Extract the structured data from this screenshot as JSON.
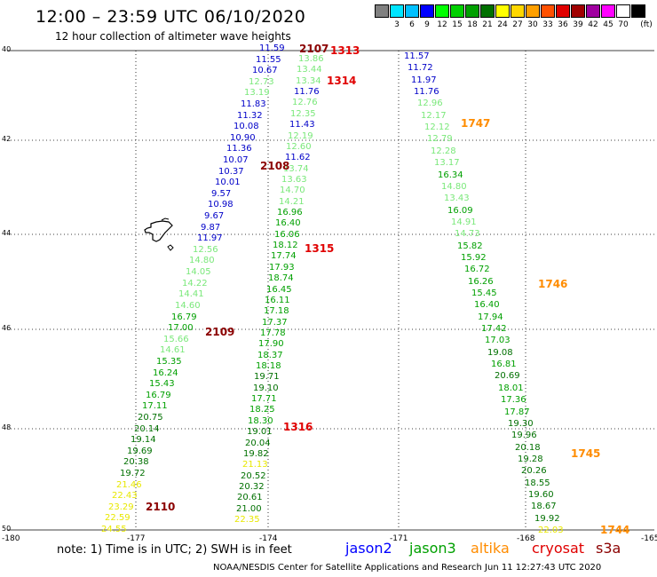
{
  "header": {
    "title": "12:00 – 23:59 UTC 06/10/2020",
    "subtitle": "12 hour collection of altimeter wave heights"
  },
  "legend": {
    "unit": "(ft)",
    "bins": [
      {
        "color": "#808080",
        "label": ""
      },
      {
        "color": "#00e5ff",
        "label": "3"
      },
      {
        "color": "#00c0ff",
        "label": "6"
      },
      {
        "color": "#0000ff",
        "label": "9"
      },
      {
        "color": "#00ff00",
        "label": "12"
      },
      {
        "color": "#00d000",
        "label": "15"
      },
      {
        "color": "#00a000",
        "label": "18"
      },
      {
        "color": "#007000",
        "label": "21"
      },
      {
        "color": "#ffff00",
        "label": "24"
      },
      {
        "color": "#ffd700",
        "label": "27"
      },
      {
        "color": "#ffa000",
        "label": "30"
      },
      {
        "color": "#ff5000",
        "label": "33"
      },
      {
        "color": "#e00000",
        "label": "36"
      },
      {
        "color": "#a00000",
        "label": "39"
      },
      {
        "color": "#a000a0",
        "label": "42"
      },
      {
        "color": "#ff00ff",
        "label": "45"
      },
      {
        "color": "#ffffff",
        "label": "70"
      },
      {
        "color": "#000000",
        "label": ""
      }
    ]
  },
  "axes": {
    "lat_labels": [
      "40",
      "42",
      "44",
      "46",
      "48",
      "50"
    ],
    "lon_labels": [
      "-180",
      "-177",
      "-174",
      "-171",
      "-168",
      "-165"
    ]
  },
  "tracks": [
    {
      "name": "track-a",
      "points": [
        {
          "v": "11.59",
          "c": "#0000c8"
        },
        {
          "v": "11.55",
          "c": "#0000c8"
        },
        {
          "v": "10.67",
          "c": "#0000c8"
        },
        {
          "v": "12.73",
          "c": "#7ae87a"
        },
        {
          "v": "13.19",
          "c": "#7ae87a"
        },
        {
          "v": "11.83",
          "c": "#0000c8"
        },
        {
          "v": "11.32",
          "c": "#0000c8"
        },
        {
          "v": "10.08",
          "c": "#0000c8"
        },
        {
          "v": "10.90",
          "c": "#0000c8"
        },
        {
          "v": "11.36",
          "c": "#0000c8"
        },
        {
          "v": "10.07",
          "c": "#0000c8"
        },
        {
          "v": "10.37",
          "c": "#0000c8"
        },
        {
          "v": "10.01",
          "c": "#0000c8"
        },
        {
          "v": "9.57",
          "c": "#0000c8"
        },
        {
          "v": "10.98",
          "c": "#0000c8"
        },
        {
          "v": "9.67",
          "c": "#0000c8"
        },
        {
          "v": "9.87",
          "c": "#0000c8"
        },
        {
          "v": "11.97",
          "c": "#0000c8"
        },
        {
          "v": "12.56",
          "c": "#7ae87a"
        },
        {
          "v": "14.80",
          "c": "#7ae87a"
        },
        {
          "v": "14.05",
          "c": "#7ae87a"
        },
        {
          "v": "14.22",
          "c": "#7ae87a"
        },
        {
          "v": "14.41",
          "c": "#7ae87a"
        },
        {
          "v": "14.60",
          "c": "#7ae87a"
        },
        {
          "v": "16.79",
          "c": "#00a000"
        },
        {
          "v": "17.00",
          "c": "#00a000"
        },
        {
          "v": "15.66",
          "c": "#7ae87a"
        },
        {
          "v": "14.61",
          "c": "#7ae87a"
        },
        {
          "v": "15.35",
          "c": "#00a000"
        },
        {
          "v": "16.24",
          "c": "#00a000"
        },
        {
          "v": "15.43",
          "c": "#00a000"
        },
        {
          "v": "16.79",
          "c": "#00a000"
        },
        {
          "v": "17.11",
          "c": "#00a000"
        },
        {
          "v": "20.75",
          "c": "#007000"
        },
        {
          "v": "20.14",
          "c": "#007000"
        },
        {
          "v": "19.14",
          "c": "#007000"
        },
        {
          "v": "19.69",
          "c": "#007000"
        },
        {
          "v": "20.38",
          "c": "#007000"
        },
        {
          "v": "19.72",
          "c": "#007000"
        },
        {
          "v": "21.46",
          "c": "#e8e800"
        },
        {
          "v": "22.43",
          "c": "#e8e800"
        },
        {
          "v": "23.29",
          "c": "#e8e800"
        },
        {
          "v": "22.59",
          "c": "#e8e800"
        },
        {
          "v": "24.55",
          "c": "#e8e800"
        }
      ]
    },
    {
      "name": "track-b",
      "points": [
        {
          "v": "13.86",
          "c": "#7ae87a"
        },
        {
          "v": "13.44",
          "c": "#7ae87a"
        },
        {
          "v": "13.34",
          "c": "#7ae87a"
        },
        {
          "v": "11.76",
          "c": "#0000c8"
        },
        {
          "v": "12.76",
          "c": "#7ae87a"
        },
        {
          "v": "12.35",
          "c": "#7ae87a"
        },
        {
          "v": "11.43",
          "c": "#0000c8"
        },
        {
          "v": "12.19",
          "c": "#7ae87a"
        },
        {
          "v": "12.60",
          "c": "#7ae87a"
        },
        {
          "v": "11.62",
          "c": "#0000c8"
        },
        {
          "v": "13.74",
          "c": "#7ae87a"
        },
        {
          "v": "13.63",
          "c": "#7ae87a"
        },
        {
          "v": "14.70",
          "c": "#7ae87a"
        },
        {
          "v": "14.21",
          "c": "#7ae87a"
        },
        {
          "v": "16.96",
          "c": "#00a000"
        },
        {
          "v": "16.40",
          "c": "#00a000"
        },
        {
          "v": "16.06",
          "c": "#00a000"
        },
        {
          "v": "18.12",
          "c": "#00a000"
        },
        {
          "v": "17.74",
          "c": "#00a000"
        },
        {
          "v": "17.93",
          "c": "#00a000"
        },
        {
          "v": "18.74",
          "c": "#00a000"
        },
        {
          "v": "16.45",
          "c": "#00a000"
        },
        {
          "v": "16.11",
          "c": "#00a000"
        },
        {
          "v": "17.18",
          "c": "#00a000"
        },
        {
          "v": "17.37",
          "c": "#00a000"
        },
        {
          "v": "17.78",
          "c": "#00a000"
        },
        {
          "v": "17.90",
          "c": "#00a000"
        },
        {
          "v": "18.37",
          "c": "#00a000"
        },
        {
          "v": "18.18",
          "c": "#00a000"
        },
        {
          "v": "19.71",
          "c": "#007000"
        },
        {
          "v": "19.10",
          "c": "#007000"
        },
        {
          "v": "17.71",
          "c": "#00a000"
        },
        {
          "v": "18.25",
          "c": "#00a000"
        },
        {
          "v": "18.30",
          "c": "#00a000"
        },
        {
          "v": "19.01",
          "c": "#007000"
        },
        {
          "v": "20.04",
          "c": "#007000"
        },
        {
          "v": "19.82",
          "c": "#007000"
        },
        {
          "v": "21.13",
          "c": "#e8e800"
        },
        {
          "v": "20.52",
          "c": "#007000"
        },
        {
          "v": "20.32",
          "c": "#007000"
        },
        {
          "v": "20.61",
          "c": "#007000"
        },
        {
          "v": "21.00",
          "c": "#007000"
        },
        {
          "v": "22.35",
          "c": "#e8e800"
        }
      ]
    },
    {
      "name": "track-c",
      "points": [
        {
          "v": "11.57",
          "c": "#0000c8"
        },
        {
          "v": "11.72",
          "c": "#0000c8"
        },
        {
          "v": "11.97",
          "c": "#0000c8"
        },
        {
          "v": "11.76",
          "c": "#0000c8"
        },
        {
          "v": "12.96",
          "c": "#7ae87a"
        },
        {
          "v": "12.17",
          "c": "#7ae87a"
        },
        {
          "v": "12.12",
          "c": "#7ae87a"
        },
        {
          "v": "12.79",
          "c": "#7ae87a"
        },
        {
          "v": "12.28",
          "c": "#7ae87a"
        },
        {
          "v": "13.17",
          "c": "#7ae87a"
        },
        {
          "v": "16.34",
          "c": "#00a000"
        },
        {
          "v": "14.80",
          "c": "#7ae87a"
        },
        {
          "v": "13.43",
          "c": "#7ae87a"
        },
        {
          "v": "16.09",
          "c": "#00a000"
        },
        {
          "v": "14.91",
          "c": "#7ae87a"
        },
        {
          "v": "14.73",
          "c": "#7ae87a"
        },
        {
          "v": "15.82",
          "c": "#00a000"
        },
        {
          "v": "15.92",
          "c": "#00a000"
        },
        {
          "v": "16.72",
          "c": "#00a000"
        },
        {
          "v": "16.26",
          "c": "#00a000"
        },
        {
          "v": "15.45",
          "c": "#00a000"
        },
        {
          "v": "16.40",
          "c": "#00a000"
        },
        {
          "v": "17.94",
          "c": "#00a000"
        },
        {
          "v": "17.42",
          "c": "#00a000"
        },
        {
          "v": "17.03",
          "c": "#00a000"
        },
        {
          "v": "19.08",
          "c": "#007000"
        },
        {
          "v": "16.81",
          "c": "#00a000"
        },
        {
          "v": "20.69",
          "c": "#007000"
        },
        {
          "v": "18.01",
          "c": "#00a000"
        },
        {
          "v": "17.36",
          "c": "#00a000"
        },
        {
          "v": "17.87",
          "c": "#00a000"
        },
        {
          "v": "19.30",
          "c": "#007000"
        },
        {
          "v": "19.96",
          "c": "#007000"
        },
        {
          "v": "20.18",
          "c": "#007000"
        },
        {
          "v": "19.28",
          "c": "#007000"
        },
        {
          "v": "20.26",
          "c": "#007000"
        },
        {
          "v": "18.55",
          "c": "#007000"
        },
        {
          "v": "19.60",
          "c": "#007000"
        },
        {
          "v": "18.67",
          "c": "#007000"
        },
        {
          "v": "19.92",
          "c": "#007000"
        },
        {
          "v": "22.03",
          "c": "#e8e800"
        }
      ]
    }
  ],
  "time_labels": [
    {
      "v": "2107",
      "c": "#8b0000"
    },
    {
      "v": "1313",
      "c": "#e00000"
    },
    {
      "v": "1314",
      "c": "#e00000"
    },
    {
      "v": "2108",
      "c": "#8b0000"
    },
    {
      "v": "1315",
      "c": "#e00000"
    },
    {
      "v": "2109",
      "c": "#8b0000"
    },
    {
      "v": "1316",
      "c": "#e00000"
    },
    {
      "v": "2110",
      "c": "#8b0000"
    },
    {
      "v": "1747",
      "c": "#ff8c00"
    },
    {
      "v": "1746",
      "c": "#ff8c00"
    },
    {
      "v": "1745",
      "c": "#ff8c00"
    },
    {
      "v": "1744",
      "c": "#ff8c00"
    }
  ],
  "footer": {
    "note": "note: 1) Time is in UTC; 2) SWH is in feet",
    "satellites": [
      {
        "name": "jason2",
        "color": "#0000ff"
      },
      {
        "name": "jason3",
        "color": "#00a000"
      },
      {
        "name": "altika",
        "color": "#ff8c00"
      },
      {
        "name": "cryosat",
        "color": "#e00000"
      },
      {
        "name": "s3a",
        "color": "#8b0000"
      }
    ],
    "credit": "NOAA/NESDIS Center for Satellite Applications and Research   Jun 11 12:27:43 UTC 2020"
  }
}
